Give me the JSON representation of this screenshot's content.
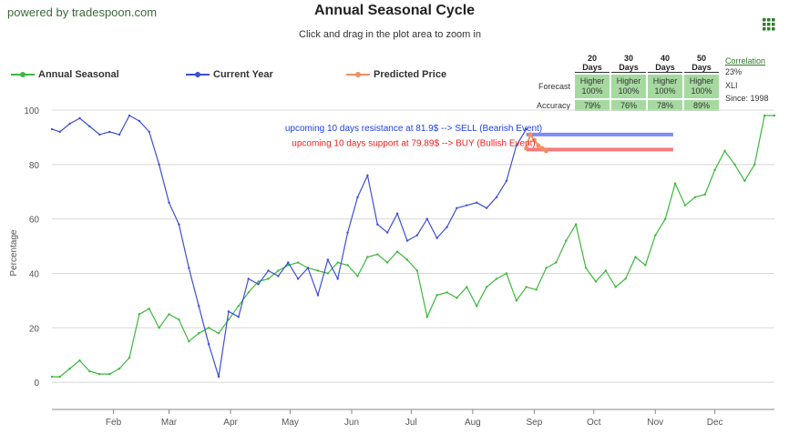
{
  "header": {
    "powered": "powered by tradespoon.com",
    "title": "Annual Seasonal Cycle",
    "subtitle": "Click and drag in the plot area to zoom in"
  },
  "legend": [
    {
      "label": "Annual Seasonal",
      "color": "#3cb93c"
    },
    {
      "label": "Current Year",
      "color": "#3c4fd8"
    },
    {
      "label": "Predicted Price",
      "color": "#f09060"
    }
  ],
  "stats": {
    "headers": [
      "20 Days",
      "30 Days",
      "40 Days",
      "50 Days"
    ],
    "forecast_label": "Forecast",
    "forecast": [
      {
        "dir": "Higher",
        "pct": "100%"
      },
      {
        "dir": "Higher",
        "pct": "100%"
      },
      {
        "dir": "Higher",
        "pct": "100%"
      },
      {
        "dir": "Higher",
        "pct": "100%"
      }
    ],
    "accuracy_label": "Accuracy",
    "accuracy": [
      "79%",
      "76%",
      "78%",
      "89%"
    ],
    "correlation_label": "Correlation",
    "correlation_value": "23%",
    "symbol": "XLI",
    "since": "Since: 1998"
  },
  "chart_data": {
    "type": "line",
    "ylabel": "Percentage",
    "ylim": [
      -10,
      100
    ],
    "yticks": [
      0,
      20,
      40,
      60,
      80,
      100
    ],
    "xlim": [
      1,
      365
    ],
    "month_ticks": [
      {
        "label": "Feb",
        "day": 32
      },
      {
        "label": "Mar",
        "day": 60
      },
      {
        "label": "Apr",
        "day": 91
      },
      {
        "label": "May",
        "day": 121
      },
      {
        "label": "Jun",
        "day": 152
      },
      {
        "label": "Jul",
        "day": 182
      },
      {
        "label": "Aug",
        "day": 213
      },
      {
        "label": "Sep",
        "day": 244
      },
      {
        "label": "Oct",
        "day": 274
      },
      {
        "label": "Nov",
        "day": 305
      },
      {
        "label": "Dec",
        "day": 335
      }
    ],
    "series": [
      {
        "name": "Annual Seasonal",
        "color": "#3cb93c",
        "x": [
          1,
          5,
          10,
          15,
          20,
          25,
          30,
          35,
          40,
          45,
          50,
          55,
          60,
          65,
          70,
          75,
          80,
          85,
          90,
          95,
          100,
          105,
          110,
          115,
          120,
          125,
          130,
          135,
          140,
          145,
          150,
          155,
          160,
          165,
          170,
          175,
          180,
          185,
          190,
          195,
          200,
          205,
          210,
          215,
          220,
          225,
          230,
          235,
          240,
          245,
          250,
          255,
          260,
          265,
          270,
          275,
          280,
          285,
          290,
          295,
          300,
          305,
          310,
          315,
          320,
          325,
          330,
          335,
          340,
          345,
          350,
          355,
          360,
          365
        ],
        "values": [
          2,
          2,
          5,
          8,
          4,
          3,
          3,
          5,
          9,
          25,
          27,
          20,
          25,
          23,
          15,
          18,
          20,
          18,
          23,
          28,
          33,
          37,
          38,
          41,
          43,
          44,
          42,
          41,
          40,
          44,
          43,
          39,
          46,
          47,
          44,
          48,
          45,
          41,
          24,
          32,
          33,
          31,
          35,
          28,
          35,
          38,
          40,
          30,
          35,
          34,
          42,
          44,
          52,
          58,
          42,
          37,
          41,
          35,
          38,
          46,
          43,
          54,
          60,
          73,
          65,
          68,
          69,
          78,
          85,
          80,
          74,
          80,
          98,
          98
        ]
      },
      {
        "name": "Current Year",
        "color": "#3c4fd8",
        "x": [
          1,
          5,
          10,
          15,
          20,
          25,
          30,
          35,
          40,
          45,
          50,
          55,
          60,
          65,
          70,
          75,
          80,
          85,
          90,
          95,
          100,
          105,
          110,
          115,
          120,
          125,
          130,
          135,
          140,
          145,
          150,
          155,
          160,
          165,
          170,
          175,
          180,
          185,
          190,
          195,
          200,
          205,
          210,
          215,
          220,
          225,
          230,
          235,
          240
        ],
        "values": [
          93,
          92,
          95,
          97,
          94,
          91,
          92,
          91,
          98,
          96,
          92,
          80,
          66,
          58,
          42,
          28,
          14,
          2,
          26,
          24,
          38,
          36,
          41,
          39,
          44,
          38,
          42,
          32,
          45,
          38,
          55,
          68,
          76,
          58,
          55,
          62,
          52,
          54,
          60,
          53,
          57,
          64,
          65,
          66,
          64,
          68,
          74,
          87,
          93
        ]
      },
      {
        "name": "Predicted Price",
        "color": "#f09060",
        "x": [
          240,
          242,
          244,
          246,
          248,
          250
        ],
        "values": [
          86,
          91,
          89,
          87,
          86,
          85
        ]
      }
    ],
    "annotations": [
      {
        "text": "upcoming 10 days resistance at 81.9$ --> SELL (Bearish Event)",
        "color": "#1f3ff0",
        "y": 91,
        "x_start": 240,
        "x_end": 314
      },
      {
        "text": "upcoming 10 days support at 79.89$ --> BUY (Bullish Event)",
        "color": "#f01f1f",
        "y": 85.5,
        "x_start": 240,
        "x_end": 314
      }
    ]
  }
}
